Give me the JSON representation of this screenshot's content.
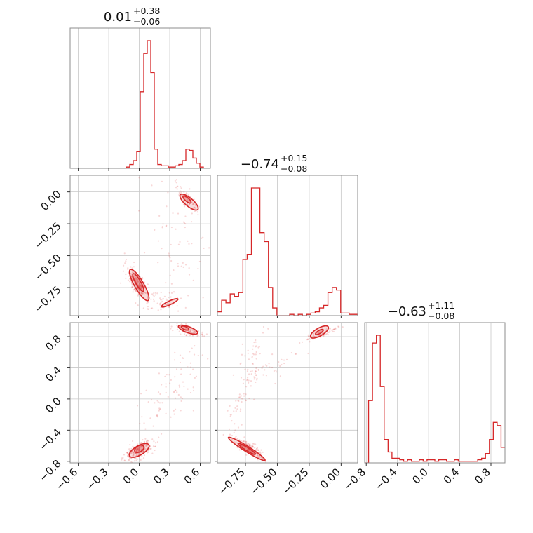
{
  "chart_data": {
    "type": "corner",
    "parameters": [
      {
        "title_main": "0.01",
        "title_up": "+0.38",
        "title_down": "−0.06",
        "range": [
          -0.68,
          0.7
        ],
        "ticks": [
          -0.6,
          -0.3,
          0.0,
          0.3,
          0.6
        ],
        "ticklabels": [
          "−0.6",
          "−0.3",
          "0.0",
          "0.3",
          "0.6"
        ]
      },
      {
        "title_main": "−0.74",
        "title_up": "+0.15",
        "title_down": "−0.08",
        "range": [
          -0.97,
          0.13
        ],
        "ticks": [
          -0.75,
          -0.5,
          -0.25,
          0.0
        ],
        "ticklabels": [
          "−0.75",
          "−0.50",
          "−0.25",
          "0.00"
        ],
        "yticks": [
          0.0,
          -0.25,
          -0.5,
          -0.75
        ],
        "yticklabels": [
          "0.00",
          "−0.25",
          "−0.50",
          "−0.75"
        ]
      },
      {
        "title_main": "−0.63",
        "title_up": "+1.11",
        "title_down": "−0.08",
        "range": [
          -0.82,
          0.98
        ],
        "ticks": [
          -0.8,
          -0.4,
          0.0,
          0.4,
          0.8
        ],
        "ticklabels": [
          "−0.8",
          "−0.4",
          "0.0",
          "0.4",
          "0.8"
        ],
        "yticks": [
          0.8,
          0.4,
          0.0,
          -0.4,
          -0.8
        ],
        "yticklabels": [
          "0.8",
          "0.4",
          "0.0",
          "−0.4",
          "−0.8"
        ]
      }
    ],
    "hist1": {
      "x0": -0.68,
      "x1": 0.7,
      "counts": [
        0,
        0,
        0,
        0,
        0,
        0,
        0,
        0,
        0,
        0,
        0,
        0,
        0,
        0,
        0,
        0,
        1,
        3,
        6,
        13,
        60,
        90,
        100,
        75,
        15,
        3,
        2,
        2,
        1,
        1,
        2,
        3,
        6,
        15,
        14,
        8,
        4,
        1,
        0,
        0
      ]
    },
    "hist2": {
      "x0": -0.97,
      "x1": 0.13,
      "counts": [
        3,
        12,
        10,
        17,
        15,
        18,
        44,
        48,
        100,
        100,
        65,
        58,
        22,
        6,
        0,
        0,
        0,
        1,
        0,
        1,
        0,
        1,
        2,
        3,
        6,
        8,
        18,
        22,
        20,
        2,
        2,
        1,
        1
      ]
    },
    "hist3": {
      "x0": -0.82,
      "x1": 0.98,
      "counts": [
        0,
        40,
        77,
        82,
        49,
        15,
        7,
        3,
        3,
        2,
        1,
        2,
        1,
        1,
        2,
        1,
        2,
        2,
        1,
        2,
        2,
        1,
        1,
        2,
        1,
        1,
        1,
        1,
        1,
        2,
        3,
        6,
        15,
        26,
        24,
        10
      ]
    },
    "color": "#d62728"
  }
}
